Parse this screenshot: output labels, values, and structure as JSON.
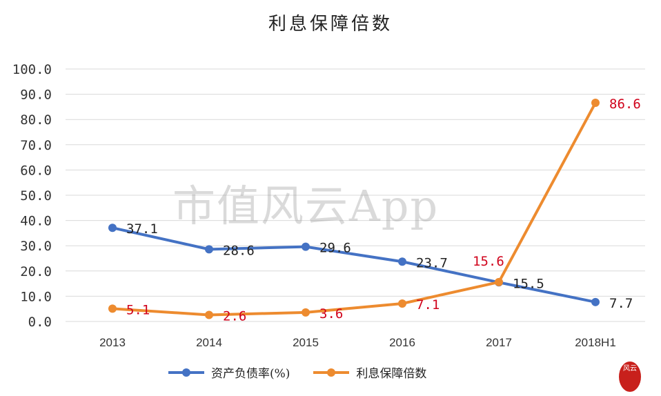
{
  "chart_data": {
    "type": "line",
    "title": "利息保障倍数",
    "categories": [
      "2013",
      "2014",
      "2015",
      "2016",
      "2017",
      "2018H1"
    ],
    "ylim": [
      0,
      100
    ],
    "yticks": [
      "0.0",
      "10.0",
      "20.0",
      "30.0",
      "40.0",
      "50.0",
      "60.0",
      "70.0",
      "80.0",
      "90.0",
      "100.0"
    ],
    "grid": true,
    "legend_position": "bottom",
    "series": [
      {
        "name": "资产负债率(%)",
        "color": "#4472c4",
        "label_color": "#222222",
        "values": [
          37.1,
          28.6,
          29.6,
          23.7,
          15.5,
          7.7
        ],
        "labels": [
          "37.1",
          "28.6",
          "29.6",
          "23.7",
          "15.5",
          "7.7"
        ]
      },
      {
        "name": "利息保障倍数",
        "color": "#ed8b2f",
        "label_color": "#d0021b",
        "values": [
          5.1,
          2.6,
          3.6,
          7.1,
          15.6,
          86.6
        ],
        "labels": [
          "5.1",
          "2.6",
          "3.6",
          "7.1",
          "15.6",
          "86.6"
        ]
      }
    ]
  },
  "watermark": "市值风云App",
  "seal": "风云"
}
